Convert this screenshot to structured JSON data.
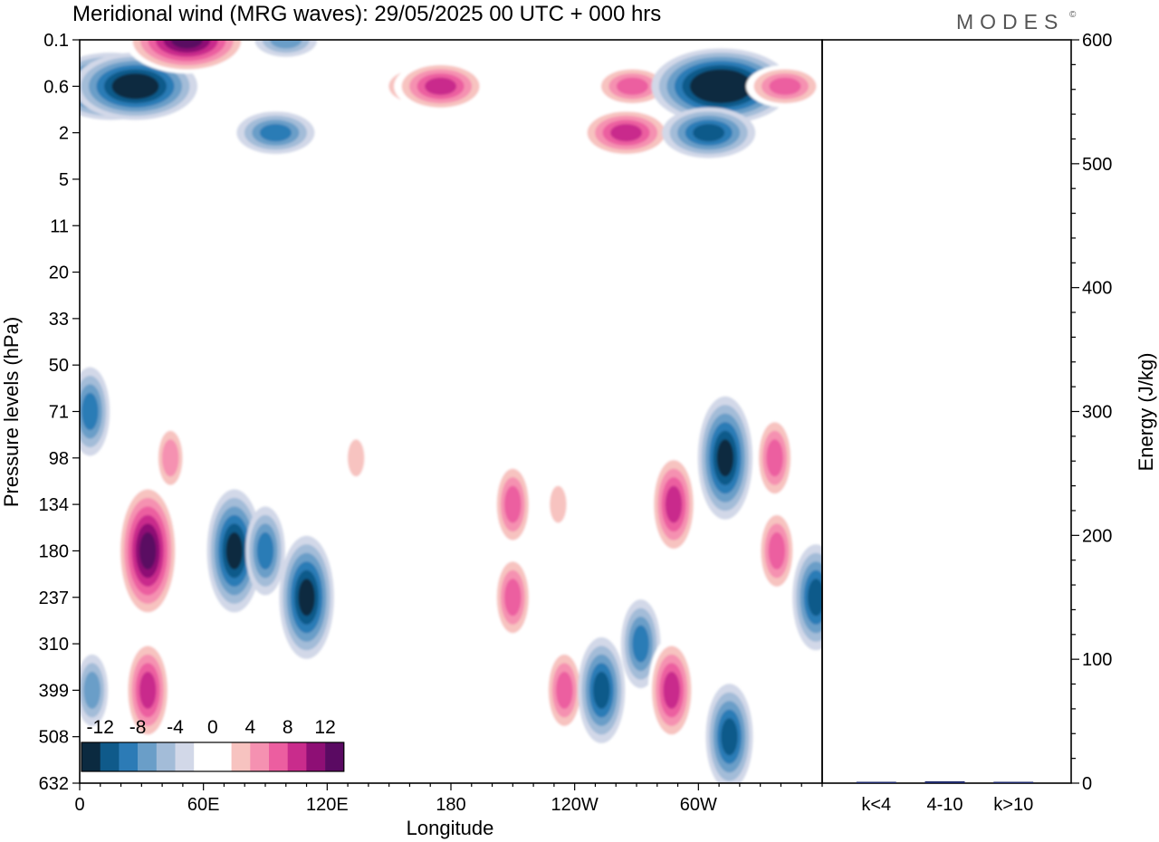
{
  "title": "Meridional wind (MRG waves):  29/05/2025  00 UTC  + 000 hrs",
  "logo": "MODES",
  "logo_mark": "©",
  "chart_data": [
    {
      "type": "heatmap",
      "title": "Meridional wind (MRG waves):  29/05/2025  00 UTC  + 000 hrs",
      "xlabel": "Longitude",
      "ylabel": "Pressure levels (hPa)",
      "x_ticks": [
        "0",
        "60E",
        "120E",
        "180",
        "120W",
        "60W"
      ],
      "x_tick_values": [
        0,
        60,
        120,
        180,
        240,
        300
      ],
      "xlim": [
        0,
        360
      ],
      "y_ticks": [
        "0.1",
        "0.6",
        "2",
        "5",
        "11",
        "20",
        "33",
        "50",
        "71",
        "98",
        "134",
        "180",
        "237",
        "310",
        "399",
        "508",
        "632"
      ],
      "y_scale": "model levels (log-like)",
      "contour_levels": [
        -14,
        -12,
        -10,
        -8,
        -6,
        -4,
        -2,
        2,
        4,
        6,
        8,
        10,
        12,
        14
      ],
      "colorbar_labels": [
        "-12",
        "-8",
        "-4",
        "0",
        "4",
        "8",
        "12"
      ],
      "colorbar_label_values": [
        -12,
        -8,
        -4,
        0,
        4,
        8,
        12
      ],
      "colorbar_colors": [
        "#0b2a40",
        "#0f5a8a",
        "#2c7bb6",
        "#6a9ec8",
        "#a3bcd8",
        "#d2d8e8",
        "#ffffff",
        "#ffffff",
        "#f7c3c0",
        "#f591b1",
        "#ec5ea0",
        "#c92c8c",
        "#8e0f75",
        "#5a0a62"
      ],
      "features": [
        {
          "lon": 15,
          "level": "0.6",
          "value": -14
        },
        {
          "lon": 27,
          "level": "0.6",
          "value": -14
        },
        {
          "lon": 52,
          "level": "0.1",
          "value": 14
        },
        {
          "lon": 100,
          "level": "0.1",
          "value": -6
        },
        {
          "lon": 95,
          "level": "2",
          "value": -8
        },
        {
          "lon": 165,
          "level": "0.6",
          "value": 8
        },
        {
          "lon": 175,
          "level": "0.6",
          "value": 10
        },
        {
          "lon": 265,
          "level": "2",
          "value": 10
        },
        {
          "lon": 268,
          "level": "0.6",
          "value": 8
        },
        {
          "lon": 311,
          "level": "0.6",
          "value": -16
        },
        {
          "lon": 305,
          "level": "2",
          "value": -10
        },
        {
          "lon": 342,
          "level": "0.6",
          "value": 8
        },
        {
          "lon": 33,
          "level": "180",
          "value": 14
        },
        {
          "lon": 33,
          "level": "399",
          "value": 10
        },
        {
          "lon": 44,
          "level": "98",
          "value": 6
        },
        {
          "lon": 75,
          "level": "180",
          "value": -12
        },
        {
          "lon": 90,
          "level": "180",
          "value": -8
        },
        {
          "lon": 110,
          "level": "237",
          "value": -12
        },
        {
          "lon": 134,
          "level": "98",
          "value": 4
        },
        {
          "lon": 210,
          "level": "134",
          "value": 8
        },
        {
          "lon": 210,
          "level": "237",
          "value": 8
        },
        {
          "lon": 232,
          "level": "134",
          "value": 4
        },
        {
          "lon": 235,
          "level": "399",
          "value": 8
        },
        {
          "lon": 253,
          "level": "399",
          "value": -10
        },
        {
          "lon": 272,
          "level": "310",
          "value": -8
        },
        {
          "lon": 288,
          "level": "134",
          "value": 10
        },
        {
          "lon": 287,
          "level": "399",
          "value": 10
        },
        {
          "lon": 313,
          "level": "98",
          "value": -12
        },
        {
          "lon": 315,
          "level": "508",
          "value": -10
        },
        {
          "lon": 337,
          "level": "98",
          "value": 8
        },
        {
          "lon": 338,
          "level": "180",
          "value": 8
        },
        {
          "lon": 357,
          "level": "237",
          "value": -10
        },
        {
          "lon": 5,
          "level": "71",
          "value": -8
        },
        {
          "lon": 6,
          "level": "399",
          "value": -6
        }
      ]
    },
    {
      "type": "bar",
      "ylabel": "Energy (J/kg)",
      "ylim": [
        0,
        600
      ],
      "y_ticks": [
        "0",
        "100",
        "200",
        "300",
        "400",
        "500",
        "600"
      ],
      "y_tick_values": [
        0,
        100,
        200,
        300,
        400,
        500,
        600
      ],
      "categories": [
        "k<4",
        "4-10",
        "k>10"
      ],
      "values": [
        0.3,
        1.5,
        0.2
      ],
      "bar_color": "#1f2a6b"
    }
  ]
}
